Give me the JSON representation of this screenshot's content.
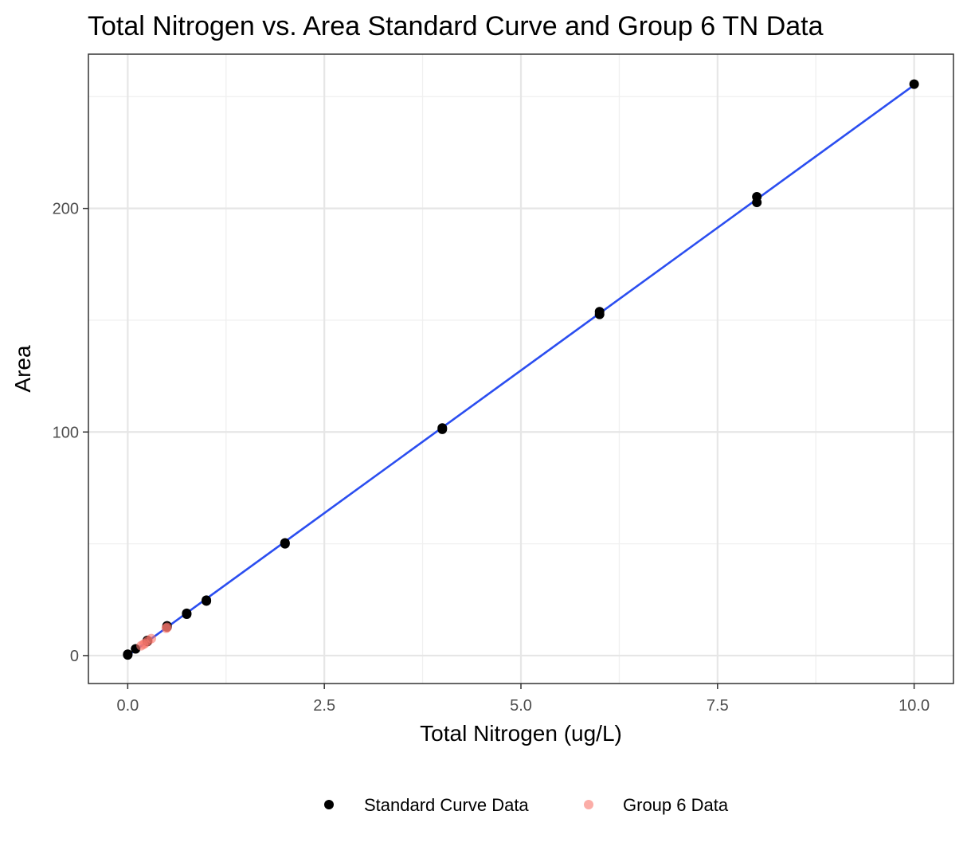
{
  "chart_data": {
    "type": "scatter",
    "title": "Total Nitrogen vs. Area Standard Curve and Group 6 TN Data",
    "xlabel": "Total Nitrogen (ug/L)",
    "ylabel": "Area",
    "xlim": [
      -0.5,
      10.5
    ],
    "ylim": [
      -12.5,
      269
    ],
    "x_ticks": [
      0.0,
      2.5,
      5.0,
      7.5,
      10.0
    ],
    "x_tick_labels": [
      "0.0",
      "2.5",
      "5.0",
      "7.5",
      "10.0"
    ],
    "x_minor_ticks": [
      1.25,
      3.75,
      6.25,
      8.75
    ],
    "y_ticks": [
      0,
      100,
      200
    ],
    "y_tick_labels": [
      "0",
      "100",
      "200"
    ],
    "y_minor_ticks": [
      50,
      150,
      250
    ],
    "grid": true,
    "legend_position": "bottom",
    "series": [
      {
        "name": "Standard Curve Data",
        "color": "#000000",
        "alpha": 1.0,
        "points": [
          {
            "x": 0.0,
            "y": 0.3
          },
          {
            "x": 0.0,
            "y": 0.6
          },
          {
            "x": 0.1,
            "y": 3.0
          },
          {
            "x": 0.25,
            "y": 6.3
          },
          {
            "x": 0.25,
            "y": 6.8
          },
          {
            "x": 0.5,
            "y": 12.8
          },
          {
            "x": 0.5,
            "y": 13.3
          },
          {
            "x": 0.75,
            "y": 18.5
          },
          {
            "x": 0.75,
            "y": 18.9
          },
          {
            "x": 1.0,
            "y": 24.4
          },
          {
            "x": 1.0,
            "y": 24.8
          },
          {
            "x": 2.0,
            "y": 50.0
          },
          {
            "x": 2.0,
            "y": 50.4
          },
          {
            "x": 4.0,
            "y": 101.2
          },
          {
            "x": 4.0,
            "y": 101.8
          },
          {
            "x": 6.0,
            "y": 152.6
          },
          {
            "x": 6.0,
            "y": 153.8
          },
          {
            "x": 8.0,
            "y": 202.7
          },
          {
            "x": 8.0,
            "y": 205.2
          },
          {
            "x": 10.0,
            "y": 255.6
          }
        ]
      },
      {
        "name": "Group 6 Data",
        "color": "#f8766d",
        "alpha": 0.6,
        "points": [
          {
            "x": 0.17,
            "y": 4.4
          },
          {
            "x": 0.2,
            "y": 5.0
          },
          {
            "x": 0.22,
            "y": 5.5
          },
          {
            "x": 0.26,
            "y": 6.6
          },
          {
            "x": 0.3,
            "y": 7.6
          },
          {
            "x": 0.49,
            "y": 12.2
          },
          {
            "x": 0.5,
            "y": 12.6
          }
        ]
      }
    ],
    "fit_line": {
      "color": "#2b4ef0",
      "x_range": [
        0.0,
        10.0
      ],
      "y_range": [
        -0.1,
        255.2
      ]
    }
  }
}
